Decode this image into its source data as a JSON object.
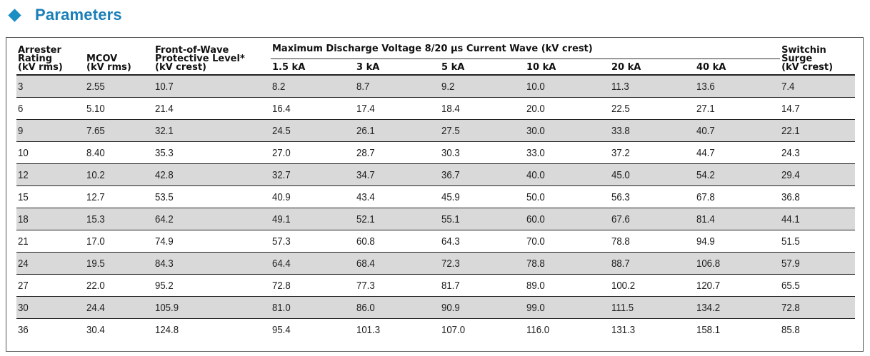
{
  "section": {
    "title": "Parameters",
    "icon": "diamond-icon",
    "accent_color": "#1a8fc4"
  },
  "table": {
    "headers": {
      "arrester_rating": [
        "Arrester",
        "Rating",
        "(kV rms)"
      ],
      "mcov": [
        "MCOV",
        "(kV rms)"
      ],
      "front_of_wave": [
        "Front-of-Wave",
        "Protective Level*",
        "(kV crest)"
      ],
      "max_discharge_group": "Maximum Discharge Voltage 8/20 µs Current Wave (kV crest)",
      "current_levels": [
        "1.5 kA",
        "3 kA",
        "5 kA",
        "10 kA",
        "20 kA",
        "40 kA"
      ],
      "switching_surge": [
        "Switchin",
        "Surge",
        "(kV crest)"
      ]
    },
    "rows": [
      [
        "3",
        "2.55",
        "10.7",
        "8.2",
        "8.7",
        "9.2",
        "10.0",
        "11.3",
        "13.6",
        "7.4"
      ],
      [
        "6",
        "5.10",
        "21.4",
        "16.4",
        "17.4",
        "18.4",
        "20.0",
        "22.5",
        "27.1",
        "14.7"
      ],
      [
        "9",
        "7.65",
        "32.1",
        "24.5",
        "26.1",
        "27.5",
        "30.0",
        "33.8",
        "40.7",
        "22.1"
      ],
      [
        "10",
        "8.40",
        "35.3",
        "27.0",
        "28.7",
        "30.3",
        "33.0",
        "37.2",
        "44.7",
        "24.3"
      ],
      [
        "12",
        "10.2",
        "42.8",
        "32.7",
        "34.7",
        "36.7",
        "40.0",
        "45.0",
        "54.2",
        "29.4"
      ],
      [
        "15",
        "12.7",
        "53.5",
        "40.9",
        "43.4",
        "45.9",
        "50.0",
        "56.3",
        "67.8",
        "36.8"
      ],
      [
        "18",
        "15.3",
        "64.2",
        "49.1",
        "52.1",
        "55.1",
        "60.0",
        "67.6",
        "81.4",
        "44.1"
      ],
      [
        "21",
        "17.0",
        "74.9",
        "57.3",
        "60.8",
        "64.3",
        "70.0",
        "78.8",
        "94.9",
        "51.5"
      ],
      [
        "24",
        "19.5",
        "84.3",
        "64.4",
        "68.4",
        "72.3",
        "78.8",
        "88.7",
        "106.8",
        "57.9"
      ],
      [
        "27",
        "22.0",
        "95.2",
        "72.8",
        "77.3",
        "81.7",
        "89.0",
        "100.2",
        "120.7",
        "65.5"
      ],
      [
        "30",
        "24.4",
        "105.9",
        "81.0",
        "86.0",
        "90.9",
        "99.0",
        "111.5",
        "134.2",
        "72.8"
      ],
      [
        "36",
        "30.4",
        "124.8",
        "95.4",
        "101.3",
        "107.0",
        "116.0",
        "131.3",
        "158.1",
        "85.8"
      ]
    ]
  }
}
